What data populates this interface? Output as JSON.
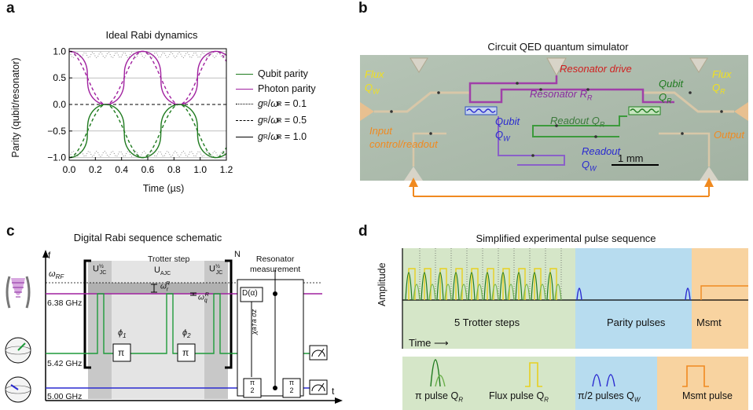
{
  "panels": {
    "a": {
      "letter": "a",
      "title": "Ideal Rabi dynamics",
      "xlabel": "Time (µs)",
      "ylabel": "Parity (qubit/resonator)",
      "xticks": [
        "0.0",
        "0.2",
        "0.4",
        "0.6",
        "0.8",
        "1.0",
        "1.2"
      ],
      "yticks": [
        "1.0",
        "0.5",
        "0.0",
        "−0.5",
        "−1.0"
      ],
      "legend": {
        "qubit": "Qubit parity",
        "photon": "Photon parity",
        "g01": "= 0.1",
        "g05": "= 0.5",
        "g10": "= 1.0"
      }
    },
    "b": {
      "letter": "b",
      "title": "Circuit QED quantum simulator",
      "labels": {
        "flux_w": "Flux",
        "flux_w_q": "Q",
        "flux_w_sub": "W",
        "flux_r": "Flux",
        "flux_r_q": "Q",
        "flux_r_sub": "R",
        "res_drive": "Resonator drive",
        "qubit_r": "Qubit",
        "qubit_r_q": "Q",
        "qubit_r_sub": "R",
        "resonator": "Resonator R",
        "resonator_sub": "R",
        "qubit_w": "Qubit",
        "qubit_w_q": "Q",
        "qubit_w_sub": "W",
        "readout_r": "Readout Q",
        "readout_r_sub": "R",
        "input1": "Input",
        "input2": "control/readout",
        "output": "Output",
        "readout_w": "Readout",
        "readout_w_q": "Q",
        "readout_w_sub": "W",
        "scale": "1 mm"
      }
    },
    "c": {
      "letter": "c",
      "title": "Digital Rabi sequence schematic",
      "f": "f",
      "t": "t",
      "wrf": "ω",
      "wrf_sub": "RF",
      "f638": "6.38 GHz",
      "f542": "5.42 GHz",
      "f500": "5.00 GHz",
      "u_jc": "U",
      "u_jc_sub": "JC",
      "u_ajc": "U",
      "u_ajc_sub": "AJC",
      "trotter": "Trotter step",
      "n": "N",
      "res_meas1": "Resonator",
      "res_meas2": "measurement",
      "omega_r": "ω",
      "omega_r_sup": "R",
      "omega_r_sub": "r",
      "omega_q": "ω",
      "omega_q_sup": "R",
      "omega_q_sub": "q",
      "phi1": "ϕ",
      "phi1_sub": "1",
      "phi2": "ϕ",
      "phi2_sub": "2",
      "pi": "π",
      "dalpha": "D(α)",
      "gate_top": "π",
      "gate_bottom": "2",
      "chi": "χa†a σz",
      "half": "½"
    },
    "d": {
      "letter": "d",
      "title": "Simplified experimental pulse sequence",
      "amplitude": "Amplitude",
      "trotter": "5 Trotter steps",
      "parity": "Parity pulses",
      "msmt": "Msmt",
      "time": "Time",
      "leg_pi": "π pulse Q",
      "leg_pi_sub": "R",
      "leg_flux": "Flux pulse Q",
      "leg_flux_sub": "R",
      "leg_half": "π/2 pulses Q",
      "leg_half_sub": "W",
      "leg_msmt": "Msmt pulse"
    }
  },
  "colors": {
    "qubit": "#1e7a1e",
    "photon": "#a0209f",
    "readout_w": "#2a2ad0",
    "drive": "#d02020",
    "orange": "#f08a20",
    "yellow": "#f0e020",
    "green_bg": "#d5e6c8",
    "blue_bg": "#b7dcef",
    "orange_bg": "#f8d3a0"
  }
}
